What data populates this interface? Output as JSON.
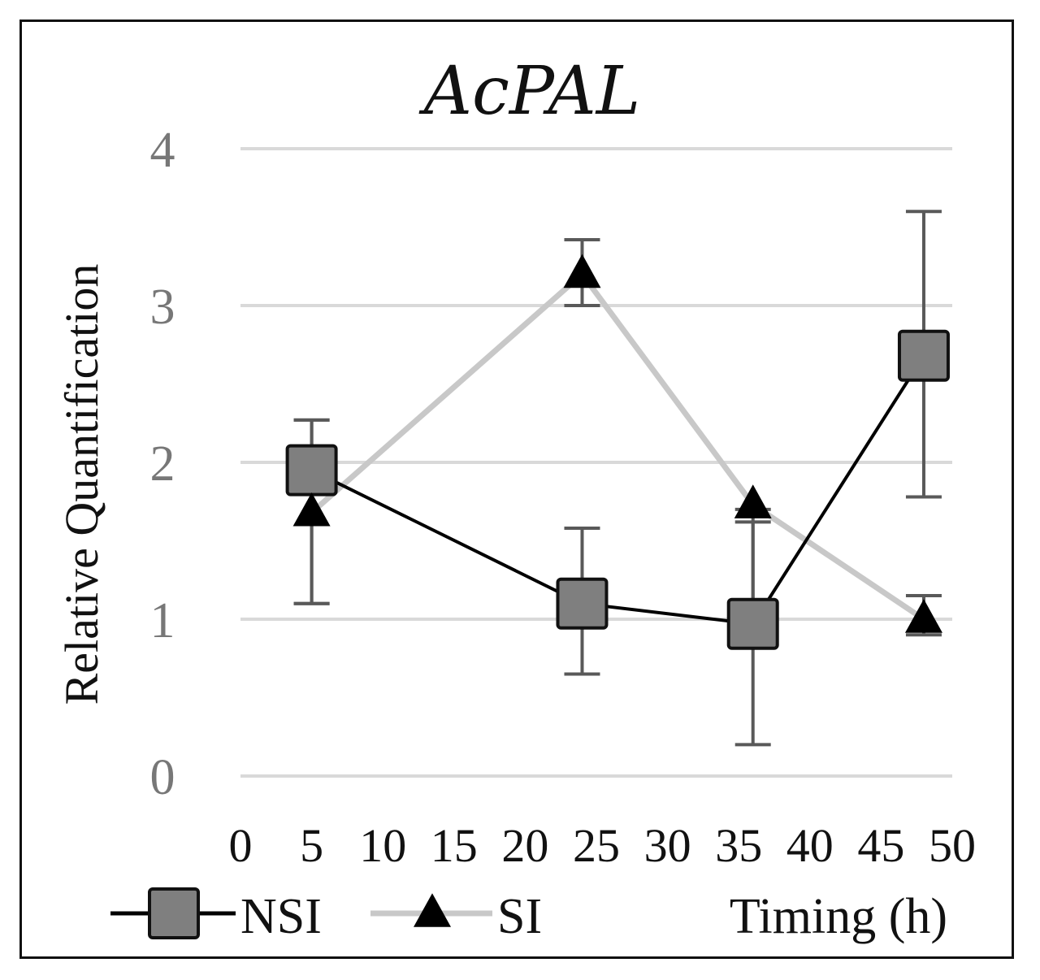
{
  "chart_data": {
    "type": "line",
    "title": "AcPAL",
    "xlabel": "Timing (h)",
    "ylabel": "Relative Quantification",
    "xlim": [
      0,
      50
    ],
    "ylim": [
      0,
      4
    ],
    "xticks": [
      "0",
      "5",
      "10",
      "15",
      "20",
      "25",
      "30",
      "35",
      "40",
      "45",
      "50"
    ],
    "yticks": [
      "0",
      "1",
      "2",
      "3",
      "4"
    ],
    "grid": true,
    "legend_position": "bottom",
    "series": [
      {
        "name": "NSI",
        "marker": "square",
        "color": "#000000",
        "marker_color": "#7f7f7f",
        "x": [
          5,
          24,
          36,
          48
        ],
        "y": [
          1.95,
          1.1,
          0.97,
          2.68
        ],
        "err_low": [
          1.1,
          0.65,
          0.2,
          1.78
        ],
        "err_high": [
          2.27,
          1.58,
          1.62,
          3.6
        ]
      },
      {
        "name": "SI",
        "marker": "triangle",
        "color": "#c8c8c8",
        "marker_color": "#000000",
        "x": [
          5,
          24,
          36,
          48
        ],
        "y": [
          1.68,
          3.2,
          1.73,
          1.0
        ],
        "err_low": [
          1.1,
          3.0,
          0.9,
          0.9
        ],
        "err_high": [
          2.27,
          3.42,
          1.7,
          1.15
        ]
      }
    ]
  }
}
